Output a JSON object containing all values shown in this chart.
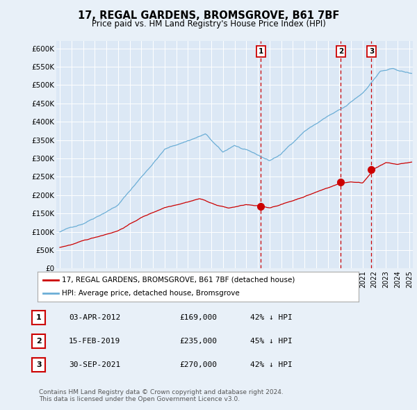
{
  "title": "17, REGAL GARDENS, BROMSGROVE, B61 7BF",
  "subtitle": "Price paid vs. HM Land Registry's House Price Index (HPI)",
  "ylim": [
    0,
    620000
  ],
  "yticks": [
    0,
    50000,
    100000,
    150000,
    200000,
    250000,
    300000,
    350000,
    400000,
    450000,
    500000,
    550000,
    600000
  ],
  "ytick_labels": [
    "£0",
    "£50K",
    "£100K",
    "£150K",
    "£200K",
    "£250K",
    "£300K",
    "£350K",
    "£400K",
    "£450K",
    "£500K",
    "£550K",
    "£600K"
  ],
  "hpi_color": "#6baed6",
  "sale_color": "#cc0000",
  "dashed_line_color": "#cc0000",
  "transaction_dates": [
    2012.25,
    2019.12,
    2021.75
  ],
  "transaction_prices": [
    169000,
    235000,
    270000
  ],
  "transaction_labels": [
    "1",
    "2",
    "3"
  ],
  "legend_sale_label": "17, REGAL GARDENS, BROMSGROVE, B61 7BF (detached house)",
  "legend_hpi_label": "HPI: Average price, detached house, Bromsgrove",
  "table_rows": [
    [
      "1",
      "03-APR-2012",
      "£169,000",
      "42% ↓ HPI"
    ],
    [
      "2",
      "15-FEB-2019",
      "£235,000",
      "45% ↓ HPI"
    ],
    [
      "3",
      "30-SEP-2021",
      "£270,000",
      "42% ↓ HPI"
    ]
  ],
  "footer": "Contains HM Land Registry data © Crown copyright and database right 2024.\nThis data is licensed under the Open Government Licence v3.0.",
  "background_color": "#e8f0f8",
  "plot_bg_color": "#dce8f5",
  "xlim_left": 1994.7,
  "xlim_right": 2025.3,
  "xtick_start": 1995,
  "xtick_end": 2025
}
